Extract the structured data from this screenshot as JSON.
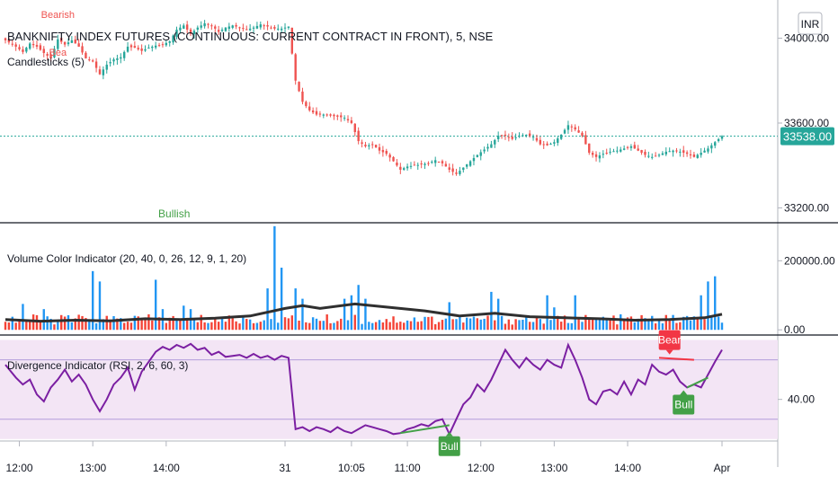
{
  "header": {
    "title": "BANKNIFTY INDEX FUTURES (CONTINUOUS: CURRENT CONTRACT IN FRONT), 5, NSE",
    "currency": "INR"
  },
  "colors": {
    "up": "#26a69a",
    "down": "#ef5350",
    "volume_up": "#2196f3",
    "volume_down": "#f44336",
    "volume_ma": "#2f2f2f",
    "rsi_line": "#7b1fa2",
    "rsi_band": "#f3e5f5",
    "bull": "#43a047",
    "bear": "#f23645",
    "price_line": "#26a69a"
  },
  "chart_data": [
    {
      "type": "candlestick",
      "legend": "Candlesticks (5)",
      "y_ticks": [
        "34000.00",
        "33600.00",
        "33200.00"
      ],
      "y_tick_values": [
        34000,
        33600,
        33200
      ],
      "ylim": [
        33130,
        34180
      ],
      "last_price": "33538.00",
      "last_value": 33538,
      "labels": [
        {
          "text": "Bearish",
          "color": "#ef5350",
          "index": 15
        },
        {
          "text": "Bea",
          "color": "#ef5350",
          "index": 15
        },
        {
          "text": "Bullish",
          "color": "#43a047",
          "index": 47
        }
      ],
      "close_path": [
        [
          0,
          33990
        ],
        [
          3,
          33960
        ],
        [
          5,
          33935
        ],
        [
          7,
          33975
        ],
        [
          9,
          33960
        ],
        [
          11,
          33930
        ],
        [
          13,
          33905
        ],
        [
          15,
          33995
        ],
        [
          17,
          33970
        ],
        [
          19,
          33990
        ],
        [
          21,
          33960
        ],
        [
          23,
          33905
        ],
        [
          25,
          33890
        ],
        [
          27,
          33830
        ],
        [
          29,
          33875
        ],
        [
          31,
          33900
        ],
        [
          33,
          33910
        ],
        [
          35,
          33960
        ],
        [
          37,
          33955
        ],
        [
          39,
          33940
        ],
        [
          41,
          33955
        ],
        [
          43,
          33965
        ],
        [
          45,
          33970
        ],
        [
          47,
          33985
        ],
        [
          49,
          34040
        ],
        [
          51,
          34060
        ],
        [
          53,
          34020
        ],
        [
          55,
          34050
        ],
        [
          57,
          34070
        ],
        [
          59,
          34060
        ],
        [
          61,
          34030
        ],
        [
          63,
          34050
        ],
        [
          65,
          34060
        ],
        [
          67,
          34050
        ],
        [
          69,
          34040
        ],
        [
          71,
          34050
        ],
        [
          73,
          34065
        ],
        [
          75,
          34055
        ],
        [
          77,
          34045
        ],
        [
          79,
          34045
        ],
        [
          81,
          34055
        ],
        [
          83,
          33800
        ],
        [
          85,
          33700
        ],
        [
          87,
          33660
        ],
        [
          89,
          33640
        ],
        [
          91,
          33640
        ],
        [
          93,
          33635
        ],
        [
          95,
          33630
        ],
        [
          97,
          33625
        ],
        [
          99,
          33600
        ],
        [
          101,
          33515
        ],
        [
          103,
          33490
        ],
        [
          105,
          33500
        ],
        [
          107,
          33470
        ],
        [
          109,
          33455
        ],
        [
          111,
          33420
        ],
        [
          113,
          33380
        ],
        [
          115,
          33395
        ],
        [
          117,
          33400
        ],
        [
          119,
          33405
        ],
        [
          121,
          33410
        ],
        [
          123,
          33425
        ],
        [
          125,
          33410
        ],
        [
          127,
          33380
        ],
        [
          129,
          33360
        ],
        [
          131,
          33390
        ],
        [
          133,
          33420
        ],
        [
          135,
          33450
        ],
        [
          137,
          33475
        ],
        [
          139,
          33500
        ],
        [
          141,
          33540
        ],
        [
          143,
          33540
        ],
        [
          145,
          33525
        ],
        [
          147,
          33540
        ],
        [
          149,
          33545
        ],
        [
          151,
          33535
        ],
        [
          153,
          33500
        ],
        [
          155,
          33495
        ],
        [
          157,
          33510
        ],
        [
          159,
          33545
        ],
        [
          161,
          33590
        ],
        [
          163,
          33570
        ],
        [
          165,
          33540
        ],
        [
          167,
          33460
        ],
        [
          169,
          33440
        ],
        [
          171,
          33455
        ],
        [
          173,
          33465
        ],
        [
          175,
          33470
        ],
        [
          177,
          33480
        ],
        [
          179,
          33490
        ],
        [
          181,
          33470
        ],
        [
          183,
          33450
        ],
        [
          185,
          33440
        ],
        [
          187,
          33450
        ],
        [
          189,
          33465
        ],
        [
          191,
          33470
        ],
        [
          193,
          33465
        ],
        [
          195,
          33455
        ],
        [
          197,
          33440
        ],
        [
          199,
          33460
        ],
        [
          201,
          33480
        ],
        [
          203,
          33510
        ],
        [
          205,
          33538
        ]
      ]
    },
    {
      "type": "bar",
      "legend": "Volume Color Indicator (20, 40, 0, 26, 12, 9, 1, 20)",
      "y_ticks": [
        "200000.00",
        "0.00"
      ],
      "y_tick_values": [
        200000,
        0
      ],
      "ylim": [
        -15000,
        310000
      ],
      "tall_up_bars": [
        [
          5,
          75000
        ],
        [
          11,
          60000
        ],
        [
          25,
          170000
        ],
        [
          27,
          140000
        ],
        [
          43,
          145000
        ],
        [
          45,
          60000
        ],
        [
          51,
          70000
        ],
        [
          53,
          60000
        ],
        [
          75,
          120000
        ],
        [
          77,
          300000
        ],
        [
          79,
          180000
        ],
        [
          83,
          120000
        ],
        [
          85,
          90000
        ],
        [
          97,
          90000
        ],
        [
          99,
          100000
        ],
        [
          101,
          130000
        ],
        [
          103,
          90000
        ],
        [
          127,
          80000
        ],
        [
          139,
          110000
        ],
        [
          141,
          90000
        ],
        [
          155,
          100000
        ],
        [
          157,
          65000
        ],
        [
          163,
          100000
        ],
        [
          199,
          100000
        ],
        [
          201,
          140000
        ],
        [
          203,
          155000
        ]
      ],
      "ma_path": [
        [
          0,
          30000
        ],
        [
          10,
          25000
        ],
        [
          20,
          28000
        ],
        [
          30,
          26000
        ],
        [
          40,
          32000
        ],
        [
          50,
          30000
        ],
        [
          60,
          34000
        ],
        [
          70,
          40000
        ],
        [
          80,
          62000
        ],
        [
          85,
          70000
        ],
        [
          90,
          62000
        ],
        [
          100,
          75000
        ],
        [
          110,
          65000
        ],
        [
          120,
          55000
        ],
        [
          130,
          40000
        ],
        [
          140,
          48000
        ],
        [
          150,
          38000
        ],
        [
          160,
          35000
        ],
        [
          170,
          32000
        ],
        [
          180,
          28000
        ],
        [
          190,
          30000
        ],
        [
          200,
          35000
        ],
        [
          205,
          45000
        ]
      ]
    },
    {
      "type": "line",
      "legend": "Divergence Indicator (RSI, 2, 6, 60, 3)",
      "y_ticks": [
        "40.00"
      ],
      "y_tick_values": [
        40
      ],
      "ylim": [
        -2,
        105
      ],
      "band": [
        20,
        80
      ],
      "mid_lines": [
        20,
        80
      ],
      "labels": [
        {
          "text": "Bear",
          "color": "#f23645",
          "index": 190
        },
        {
          "text": "Bull",
          "color": "#43a047",
          "index": 194
        },
        {
          "text": "Bull",
          "color": "#43a047",
          "index": 127
        }
      ],
      "rsi_path": [
        [
          0,
          75
        ],
        [
          3,
          62
        ],
        [
          5,
          55
        ],
        [
          7,
          60
        ],
        [
          9,
          45
        ],
        [
          11,
          38
        ],
        [
          13,
          52
        ],
        [
          15,
          60
        ],
        [
          17,
          70
        ],
        [
          19,
          58
        ],
        [
          21,
          65
        ],
        [
          23,
          55
        ],
        [
          25,
          40
        ],
        [
          27,
          28
        ],
        [
          29,
          40
        ],
        [
          31,
          55
        ],
        [
          33,
          62
        ],
        [
          35,
          72
        ],
        [
          37,
          50
        ],
        [
          39,
          68
        ],
        [
          41,
          78
        ],
        [
          43,
          88
        ],
        [
          45,
          93
        ],
        [
          47,
          90
        ],
        [
          49,
          95
        ],
        [
          51,
          92
        ],
        [
          53,
          96
        ],
        [
          55,
          90
        ],
        [
          57,
          92
        ],
        [
          59,
          85
        ],
        [
          61,
          88
        ],
        [
          63,
          83
        ],
        [
          65,
          84
        ],
        [
          67,
          85
        ],
        [
          69,
          82
        ],
        [
          71,
          86
        ],
        [
          73,
          82
        ],
        [
          75,
          84
        ],
        [
          77,
          80
        ],
        [
          79,
          84
        ],
        [
          81,
          82
        ],
        [
          83,
          10
        ],
        [
          85,
          12
        ],
        [
          87,
          8
        ],
        [
          89,
          12
        ],
        [
          91,
          10
        ],
        [
          93,
          7
        ],
        [
          95,
          12
        ],
        [
          97,
          8
        ],
        [
          99,
          6
        ],
        [
          101,
          10
        ],
        [
          103,
          14
        ],
        [
          105,
          12
        ],
        [
          107,
          10
        ],
        [
          109,
          8
        ],
        [
          111,
          5
        ],
        [
          113,
          6
        ],
        [
          115,
          10
        ],
        [
          117,
          12
        ],
        [
          119,
          15
        ],
        [
          121,
          13
        ],
        [
          123,
          18
        ],
        [
          125,
          20
        ],
        [
          127,
          5
        ],
        [
          129,
          20
        ],
        [
          131,
          35
        ],
        [
          133,
          42
        ],
        [
          135,
          55
        ],
        [
          137,
          48
        ],
        [
          139,
          60
        ],
        [
          141,
          75
        ],
        [
          143,
          90
        ],
        [
          145,
          80
        ],
        [
          147,
          72
        ],
        [
          149,
          82
        ],
        [
          151,
          75
        ],
        [
          153,
          70
        ],
        [
          155,
          80
        ],
        [
          157,
          75
        ],
        [
          159,
          72
        ],
        [
          161,
          95
        ],
        [
          163,
          80
        ],
        [
          165,
          62
        ],
        [
          167,
          40
        ],
        [
          169,
          35
        ],
        [
          171,
          48
        ],
        [
          173,
          50
        ],
        [
          175,
          45
        ],
        [
          177,
          58
        ],
        [
          179,
          45
        ],
        [
          181,
          60
        ],
        [
          183,
          55
        ],
        [
          185,
          75
        ],
        [
          187,
          68
        ],
        [
          189,
          65
        ],
        [
          191,
          70
        ],
        [
          193,
          58
        ],
        [
          195,
          52
        ],
        [
          197,
          55
        ],
        [
          199,
          52
        ],
        [
          201,
          65
        ],
        [
          203,
          78
        ],
        [
          205,
          90
        ]
      ],
      "bear_line": [
        [
          187,
          82
        ],
        [
          197,
          80
        ]
      ],
      "bull_line": [
        [
          195,
          52
        ],
        [
          201,
          62
        ]
      ],
      "bull_line_2": [
        [
          113,
          6
        ],
        [
          127,
          14
        ]
      ]
    }
  ],
  "x_axis": {
    "ticks": [
      "12:00",
      "13:00",
      "14:00",
      "31",
      "10:05",
      "11:00",
      "12:00",
      "13:00",
      "14:00",
      "Apr"
    ],
    "tick_index": [
      4,
      25,
      46,
      80,
      99,
      115,
      136,
      157,
      178,
      205
    ]
  }
}
